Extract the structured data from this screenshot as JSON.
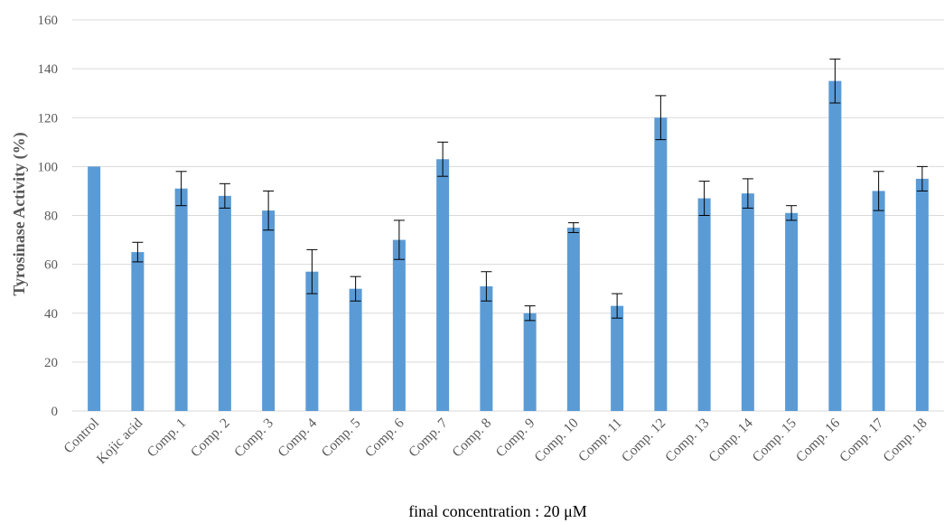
{
  "chart_data": {
    "type": "bar",
    "title": "",
    "xlabel": "final concentration : 20 μM",
    "ylabel": "Tyrosinase Activity (%)",
    "ylim": [
      0,
      160
    ],
    "yticks": [
      0,
      20,
      40,
      60,
      80,
      100,
      120,
      140,
      160
    ],
    "grid": true,
    "categories": [
      "Control",
      "Kojic acid",
      "Comp. 1",
      "Comp. 2",
      "Comp. 3",
      "Comp. 4",
      "Comp. 5",
      "Comp. 6",
      "Comp. 7",
      "Comp. 8",
      "Comp. 9",
      "Comp. 10",
      "Comp. 11",
      "Comp. 12",
      "Comp. 13",
      "Comp. 14",
      "Comp. 15",
      "Comp. 16",
      "Comp. 17",
      "Comp. 18"
    ],
    "values": [
      100,
      65,
      91,
      88,
      82,
      57,
      50,
      70,
      103,
      51,
      40,
      75,
      43,
      120,
      87,
      89,
      81,
      135,
      90,
      95
    ],
    "errors": [
      0,
      4,
      7,
      5,
      8,
      9,
      5,
      8,
      7,
      6,
      3,
      2,
      5,
      9,
      7,
      6,
      3,
      9,
      8,
      5
    ],
    "bar_color": "#5b9bd5",
    "gridline_color": "#d9d9d9",
    "error_bar_color": "#000000"
  }
}
